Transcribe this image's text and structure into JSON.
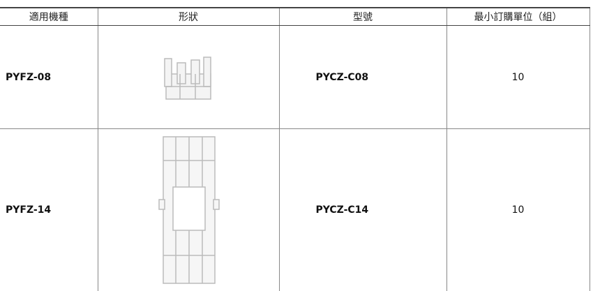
{
  "table": {
    "header": [
      "適用機種",
      "形狀",
      "型號",
      "最小訂購單位（組）"
    ],
    "rows": [
      {
        "model": "PYFZ-08",
        "part": "PYCZ-C08",
        "min_order": 10
      },
      {
        "model": "PYFZ-14",
        "part": "PYCZ-C14",
        "min_order": 10
      }
    ]
  }
}
